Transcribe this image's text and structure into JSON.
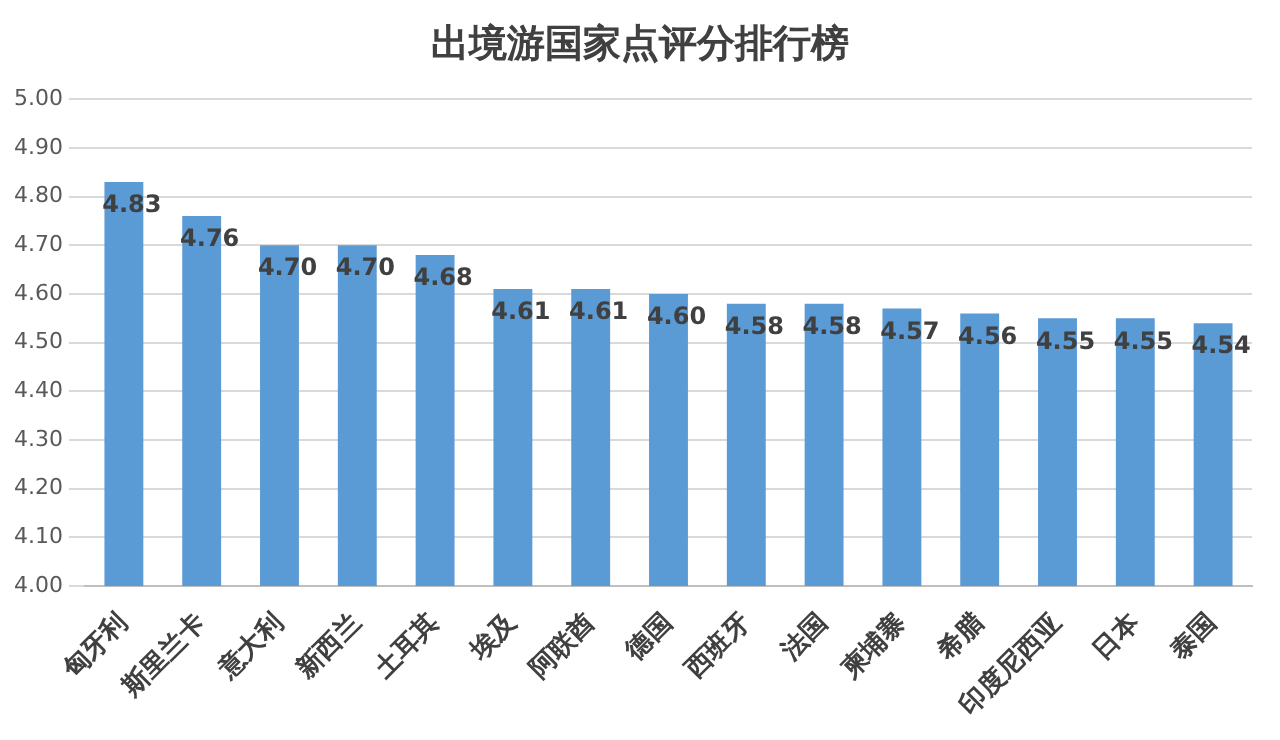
{
  "chart_data": {
    "type": "bar",
    "title": "出境游国家点评分排行榜",
    "categories": [
      "匈牙利",
      "斯里兰卡",
      "意大利",
      "新西兰",
      "土耳其",
      "埃及",
      "阿联酋",
      "德国",
      "西班牙",
      "法国",
      "柬埔寨",
      "希腊",
      "印度尼西亚",
      "日本",
      "泰国"
    ],
    "values": [
      4.83,
      4.76,
      4.7,
      4.7,
      4.68,
      4.61,
      4.61,
      4.6,
      4.58,
      4.58,
      4.57,
      4.56,
      4.55,
      4.55,
      4.54
    ],
    "value_labels": [
      "4.83",
      "4.76",
      "4.70",
      "4.70",
      "4.68",
      "4.61",
      "4.61",
      "4.60",
      "4.58",
      "4.58",
      "4.57",
      "4.56",
      "4.55",
      "4.55",
      "4.54"
    ],
    "color": "#5b9bd5",
    "ylim": [
      4,
      5
    ],
    "yticks": [
      {
        "value": 4,
        "label": "4.00"
      },
      {
        "value": 4.1,
        "label": "4.10"
      },
      {
        "value": 4.2,
        "label": "4.20"
      },
      {
        "value": 4.3,
        "label": "4.30"
      },
      {
        "value": 4.4,
        "label": "4.40"
      },
      {
        "value": 4.5,
        "label": "4.50"
      },
      {
        "value": 4.6,
        "label": "4.60"
      },
      {
        "value": 4.7,
        "label": "4.70"
      },
      {
        "value": 4.8,
        "label": "4.80"
      },
      {
        "value": 4.9,
        "label": "4.90"
      },
      {
        "value": 5,
        "label": "5.00"
      }
    ],
    "grid": "y"
  }
}
